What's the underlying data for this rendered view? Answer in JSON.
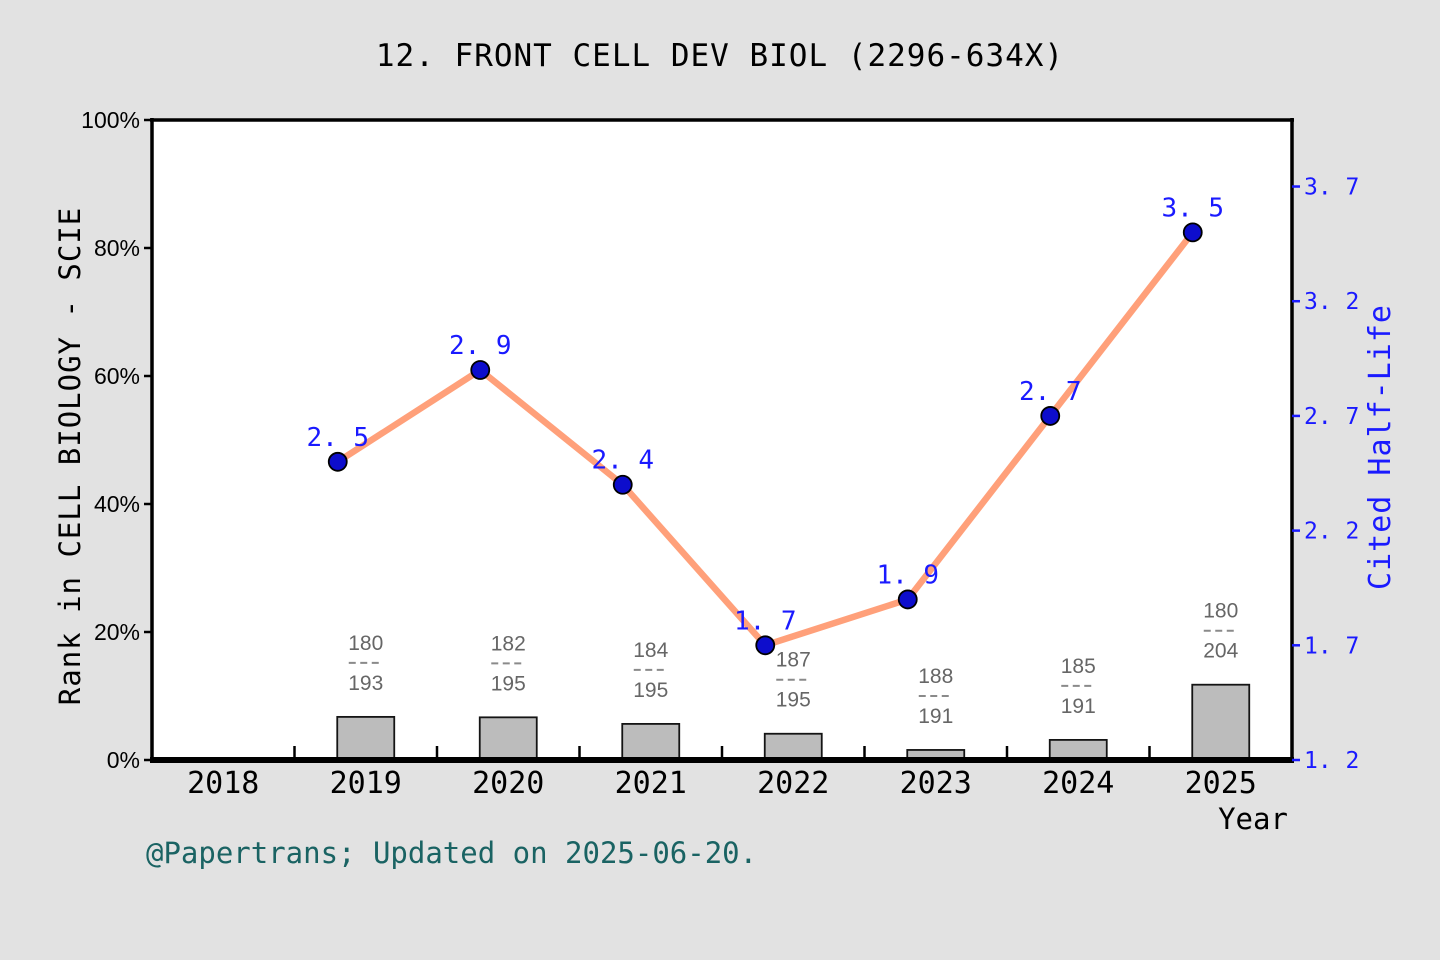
{
  "title": "12. FRONT CELL DEV BIOL (2296-634X)",
  "footer": "@Papertrans; Updated on 2025-06-20.",
  "left_axis": {
    "label": "Rank in CELL BIOLOGY - SCIE",
    "ticks": [
      0,
      20,
      40,
      60,
      80,
      100
    ],
    "tick_suffix": "%",
    "range": [
      0,
      100
    ]
  },
  "right_axis": {
    "label": "Cited Half-Life",
    "ticks": [
      1.2,
      1.7,
      2.2,
      2.7,
      3.2,
      3.7
    ],
    "range": [
      1.2,
      3.99
    ],
    "color": "#1a1aff"
  },
  "x_axis": {
    "label": "Year",
    "categories": [
      2018,
      2019,
      2020,
      2021,
      2022,
      2023,
      2024,
      2025
    ]
  },
  "chart_data": {
    "type": "combo",
    "title": "12. FRONT CELL DEV BIOL (2296-634X)",
    "xlabel": "Year",
    "x_ticks": [
      2018,
      2019,
      2020,
      2021,
      2022,
      2023,
      2024,
      2025
    ],
    "x": [
      2019,
      2020,
      2021,
      2022,
      2023,
      2024,
      2025
    ],
    "series": [
      {
        "name": "Cited Half-Life",
        "type": "line",
        "axis": "right",
        "values": [
          2.5,
          2.9,
          2.4,
          1.7,
          1.9,
          2.7,
          3.5
        ]
      },
      {
        "name": "Rank in CELL BIOLOGY - SCIE",
        "type": "bar",
        "axis": "left",
        "rank": [
          180,
          182,
          184,
          187,
          188,
          185,
          180
        ],
        "total": [
          193,
          195,
          195,
          195,
          191,
          191,
          204
        ],
        "percent_height": [
          6.74,
          6.67,
          5.64,
          4.1,
          1.57,
          3.14,
          11.76
        ]
      }
    ],
    "ylabel_left": "Rank in CELL BIOLOGY - SCIE",
    "ylabel_right": "Cited Half-Life",
    "legend": "none",
    "grid": false
  },
  "colors": {
    "background": "#e2e2e2",
    "plot_background": "#ffffff",
    "axis": "#000000",
    "line": "#ffa07a",
    "marker_fill": "#0d0dcc",
    "marker_edge": "#000000",
    "value_label": "#1a1aff",
    "right_tick": "#1a1aff",
    "bar_fill": "#bcbcbc",
    "bar_edge": "#141414",
    "fraction_text": "#666666",
    "fraction_divider": "#8a8a8a",
    "footer_text": "#1a6363"
  }
}
